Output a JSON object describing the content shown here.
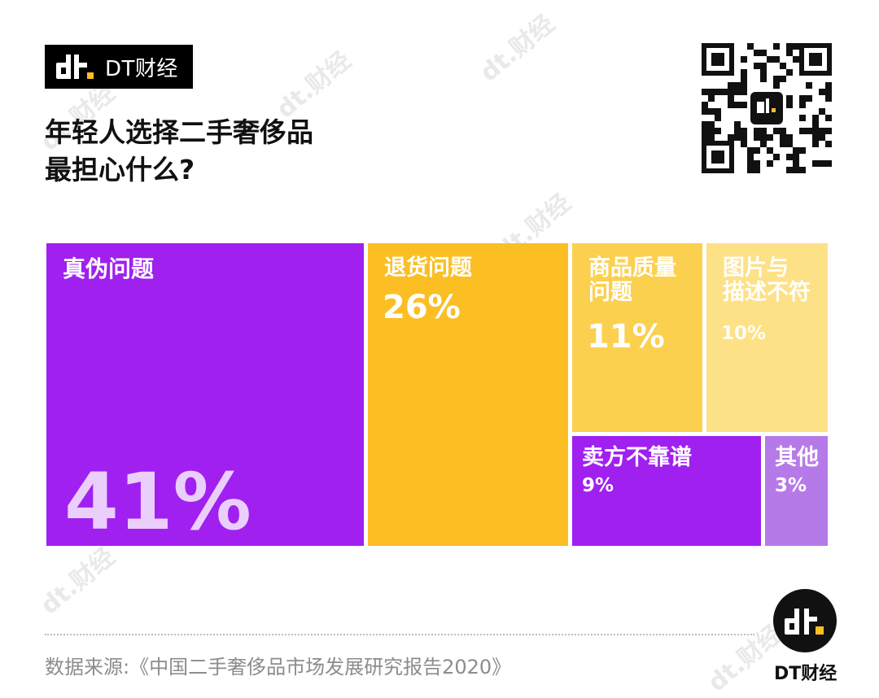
{
  "brand": {
    "name": "DT财经"
  },
  "title": {
    "line1": "年轻人选择二手奢侈品",
    "line2": "最担心什么?"
  },
  "chart_data": {
    "type": "treemap",
    "title": "年轻人选择二手奢侈品最担心什么?",
    "items": [
      {
        "label": "真伪问题",
        "value": 41,
        "value_text": "41%",
        "color": "#a020f0"
      },
      {
        "label": "退货问题",
        "value": 26,
        "value_text": "26%",
        "color": "#fbbf24"
      },
      {
        "label": "商品质量问题",
        "label_lines": [
          "商品质量",
          "问题"
        ],
        "value": 11,
        "value_text": "11%",
        "color": "#fcd04f"
      },
      {
        "label": "图片与描述不符",
        "label_lines": [
          "图片与",
          "描述不符"
        ],
        "value": 10,
        "value_text": "10%",
        "color": "#fde187"
      },
      {
        "label": "卖方不靠谱",
        "value": 9,
        "value_text": "9%",
        "color": "#a020f0"
      },
      {
        "label": "其他",
        "value": 3,
        "value_text": "3%",
        "color": "#b57ae8"
      }
    ]
  },
  "source": "数据来源:《中国二手奢侈品市场发展研究报告2020》",
  "footer": {
    "brand_name": "DT财经"
  }
}
